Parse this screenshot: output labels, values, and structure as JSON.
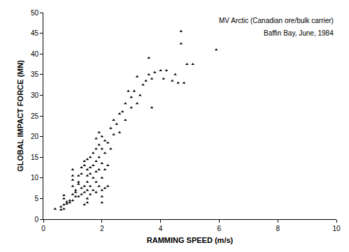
{
  "chart_data": {
    "type": "scatter",
    "x_label": "RAMMING SPEED (m/s)",
    "y_label": "GLOBAL IMPACT FORCE (MN)",
    "annotations": [
      "MV Arctic (Canadian ore/bulk carrier)",
      "Baffin Bay, June, 1984"
    ],
    "x": [
      0.4,
      0.6,
      0.6,
      0.7,
      0.7,
      0.7,
      0.7,
      0.8,
      0.8,
      0.9,
      0.9,
      1.0,
      1.0,
      1.0,
      1.0,
      1.0,
      1.0,
      1.1,
      1.1,
      1.1,
      1.2,
      1.2,
      1.2,
      1.2,
      1.3,
      1.3,
      1.3,
      1.3,
      1.4,
      1.4,
      1.4,
      1.4,
      1.4,
      1.5,
      1.5,
      1.5,
      1.5,
      1.5,
      1.5,
      1.5,
      1.6,
      1.6,
      1.6,
      1.6,
      1.6,
      1.7,
      1.7,
      1.7,
      1.7,
      1.8,
      1.8,
      1.8,
      1.8,
      1.8,
      1.8,
      1.9,
      1.9,
      1.9,
      1.9,
      1.9,
      2.0,
      2.0,
      2.0,
      2.0,
      2.0,
      2.0,
      2.0,
      2.1,
      2.1,
      2.1,
      2.1,
      2.2,
      2.2,
      2.2,
      2.3,
      2.3,
      2.4,
      2.4,
      2.5,
      2.6,
      2.6,
      2.7,
      2.8,
      2.8,
      2.9,
      3.0,
      3.0,
      3.1,
      3.2,
      3.2,
      3.3,
      3.4,
      3.5,
      3.6,
      3.6,
      3.7,
      3.7,
      3.8,
      4.0,
      4.1,
      4.2,
      4.4,
      4.5,
      4.6,
      4.7,
      4.7,
      4.8,
      4.9,
      5.1,
      5.9
    ],
    "values": [
      2.5,
      2.3,
      3,
      2.5,
      3.5,
      5,
      5.8,
      3.7,
      4.2,
      4,
      4.5,
      4.5,
      6,
      8,
      9.5,
      10.5,
      12,
      5.5,
      6.5,
      7,
      5.5,
      8.5,
      9,
      10.5,
      6,
      7.5,
      11,
      12.5,
      3.5,
      6.5,
      8,
      13,
      14,
      4,
      5,
      7,
      9,
      10.5,
      12,
      14.5,
      6,
      8,
      11,
      12.5,
      15,
      7,
      10,
      13,
      16,
      6.5,
      9,
      11.5,
      14,
      17,
      19.5,
      8,
      12,
      15,
      18,
      21,
      4,
      5.5,
      7,
      10,
      13.5,
      17,
      20,
      7.5,
      12,
      16,
      19,
      8,
      13,
      18.5,
      17,
      22,
      20.5,
      24,
      23,
      21,
      25.5,
      26,
      24,
      28,
      31,
      27,
      29.5,
      31,
      28,
      34.5,
      30,
      32.5,
      33.5,
      35,
      39,
      27,
      34,
      35.5,
      36,
      34,
      36,
      33.5,
      35,
      33,
      42.5,
      45.5,
      33,
      37.5,
      37.5,
      41
    ],
    "color": "#000000",
    "marker": "triangle-up",
    "xlim": [
      0,
      10
    ],
    "ylim": [
      0,
      50
    ],
    "xticks": [
      0,
      2,
      4,
      6,
      8,
      10
    ],
    "yticks": [
      0,
      5,
      10,
      15,
      20,
      25,
      30,
      35,
      40,
      45,
      50
    ],
    "grid": false
  }
}
